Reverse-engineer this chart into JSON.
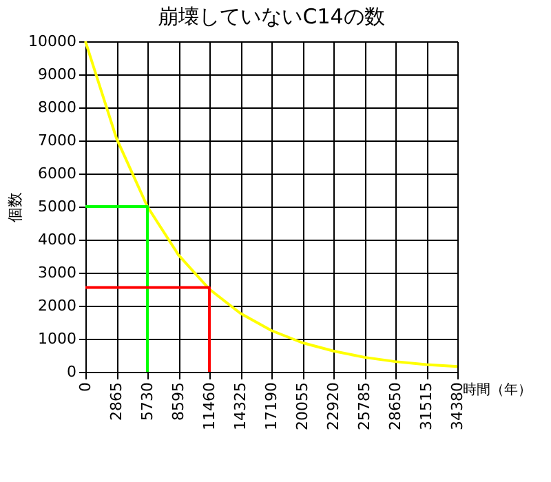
{
  "chart_data": {
    "type": "line",
    "title": "崩壊していないC14の数",
    "xlabel": "時間（年）",
    "ylabel": "個数",
    "x": [
      0,
      2865,
      5730,
      8595,
      11460,
      14325,
      17190,
      20055,
      22920,
      25785,
      28650,
      31515,
      34380
    ],
    "series": [
      {
        "color": "#ffff00",
        "values": [
          10000,
          7070,
          5000,
          3540,
          2500,
          1770,
          1250,
          880,
          630,
          440,
          310,
          220,
          160
        ]
      },
      {
        "color": "#00ff00",
        "x": [
          0,
          5730,
          5730
        ],
        "values": [
          5000,
          5000,
          0
        ]
      },
      {
        "color": "#ff0000",
        "x": [
          0,
          11460,
          11460
        ],
        "values": [
          2550,
          2550,
          0
        ]
      }
    ],
    "xlim": [
      0,
      34380
    ],
    "xticks": [
      0,
      2865,
      5730,
      8595,
      11460,
      14325,
      17190,
      20055,
      22920,
      25785,
      28650,
      31515,
      34380
    ],
    "ylim": [
      0,
      10000
    ],
    "yticks": [
      0,
      1000,
      2000,
      3000,
      4000,
      5000,
      6000,
      7000,
      8000,
      9000,
      10000
    ],
    "grid": true,
    "marker": "none",
    "line_style": "solid"
  }
}
